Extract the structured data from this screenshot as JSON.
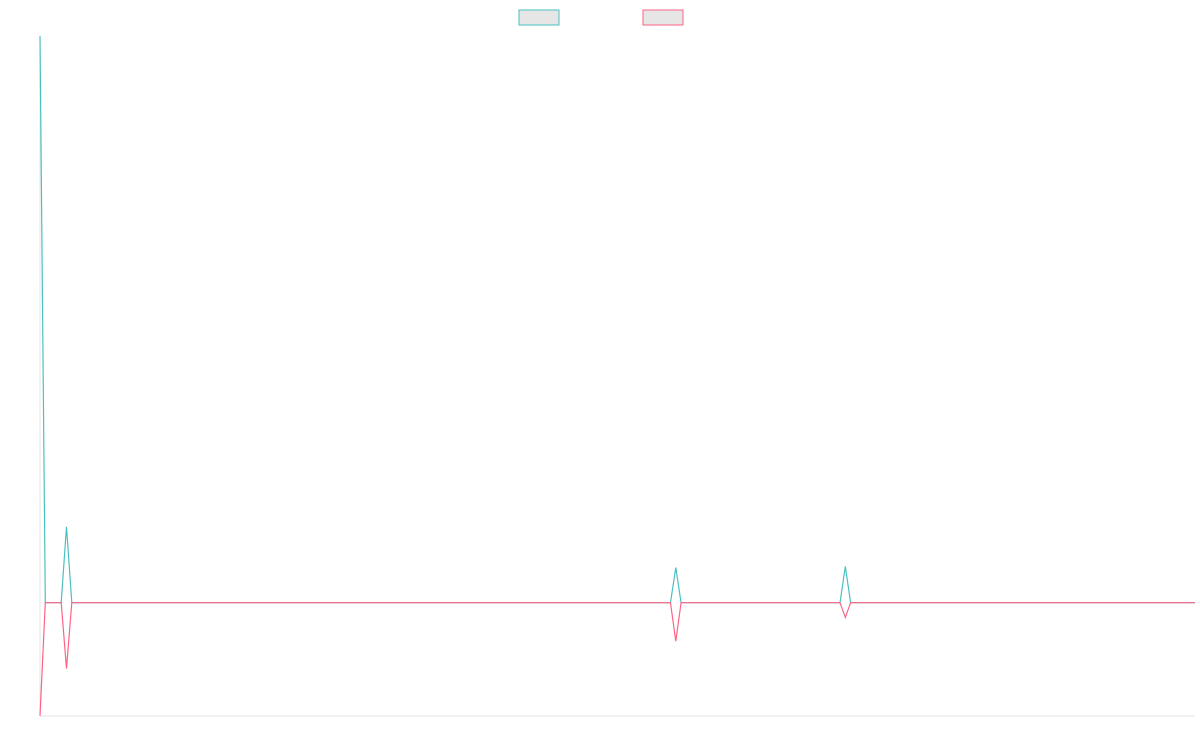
{
  "chart_data": {
    "type": "line",
    "x": [
      0,
      1,
      4,
      5,
      6,
      119,
      120,
      121,
      151,
      152,
      153,
      218
    ],
    "series": [
      {
        "color": "#4bc0c0",
        "values": [
          5,
          0,
          0,
          0.67,
          0,
          0,
          0.31,
          0,
          0,
          0.32,
          0,
          0
        ]
      },
      {
        "color": "#ff6384",
        "values": [
          -1,
          0,
          0,
          -0.58,
          0,
          0,
          -0.34,
          0,
          0,
          -0.13,
          0,
          0
        ]
      }
    ],
    "xlim": [
      0,
      218
    ],
    "ylim": [
      -1,
      5
    ],
    "legend": "top"
  }
}
